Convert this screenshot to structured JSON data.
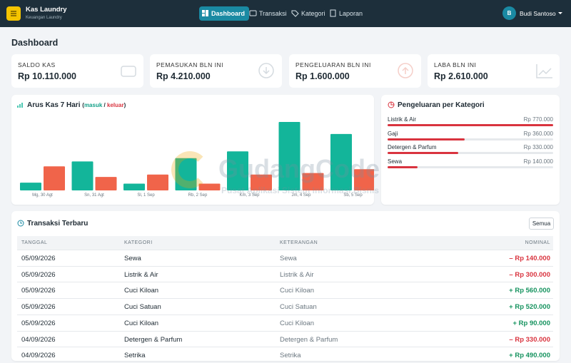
{
  "navbar": {
    "brand": "Kas Laundry",
    "subtitle": "Keuangan Laundry",
    "menu": [
      "Dashboard",
      "Transaksi",
      "Kategori",
      "Laporan"
    ],
    "user": {
      "initial": "B",
      "name": "Budi Santoso"
    }
  },
  "page_title": "Dashboard",
  "stats": [
    {
      "label": "SALDO KAS",
      "value": "Rp 10.110.000"
    },
    {
      "label": "PEMASUKAN BLN INI",
      "value": "Rp 4.210.000"
    },
    {
      "label": "PENGELUARAN BLN INI",
      "value": "Rp 1.600.000"
    },
    {
      "label": "LABA BLN INI",
      "value": "Rp 2.610.000"
    }
  ],
  "chart_data": [
    {
      "type": "bar",
      "title": "Arus Kas 7 Hari",
      "legend_brackets": [
        "(",
        ")"
      ],
      "legend_separator": "/",
      "categories": [
        "Mg, 30 Agt",
        "Sn, 31 Agt",
        "Sl, 1 Sep",
        "Rb, 2 Sep",
        "Km, 3 Sep",
        "Jm, 4 Sep",
        "Sb, 5 Sep"
      ],
      "series": [
        {
          "name": "masuk",
          "color": "#13b59a",
          "values": [
            160000,
            600000,
            140000,
            670000,
            810000,
            1420000,
            1170000
          ]
        },
        {
          "name": "keluar",
          "color": "#f0644a",
          "values": [
            500000,
            280000,
            330000,
            140000,
            330000,
            360000,
            440000
          ]
        }
      ]
    },
    {
      "type": "hbar",
      "title": "Pengeluaran per Kategori",
      "color": "#d9343f",
      "categories": [
        "Listrik & Air",
        "Gaji",
        "Detergen & Parfum",
        "Sewa"
      ],
      "values": [
        770000,
        360000,
        330000,
        140000
      ],
      "value_labels": [
        "Rp 770.000",
        "Rp 360.000",
        "Rp 330.000",
        "Rp 140.000"
      ]
    }
  ],
  "transactions": {
    "title": "Transaksi Terbaru",
    "button": "Semua",
    "columns": [
      "TANGGAL",
      "KATEGORI",
      "KETERANGAN",
      "NOMINAL"
    ],
    "rows": [
      [
        "05/09/2026",
        "Sewa",
        "Sewa",
        "– Rp 140.000"
      ],
      [
        "05/09/2026",
        "Listrik & Air",
        "Listrik & Air",
        "– Rp 300.000"
      ],
      [
        "05/09/2026",
        "Cuci Kiloan",
        "Cuci Kiloan",
        "+ Rp 560.000"
      ],
      [
        "05/09/2026",
        "Cuci Satuan",
        "Cuci Satuan",
        "+ Rp 520.000"
      ],
      [
        "05/09/2026",
        "Cuci Kiloan",
        "Cuci Kiloan",
        "+ Rp 90.000"
      ],
      [
        "04/09/2026",
        "Detergen & Parfum",
        "Detergen & Parfum",
        "– Rp 330.000"
      ],
      [
        "04/09/2026",
        "Setrika",
        "Setrika",
        "+ Rp 490.000"
      ]
    ]
  },
  "watermark": {
    "title": "GudangCode",
    "subtitle": "Pusat Aplikasi Sistem Informasi Bisnis"
  }
}
